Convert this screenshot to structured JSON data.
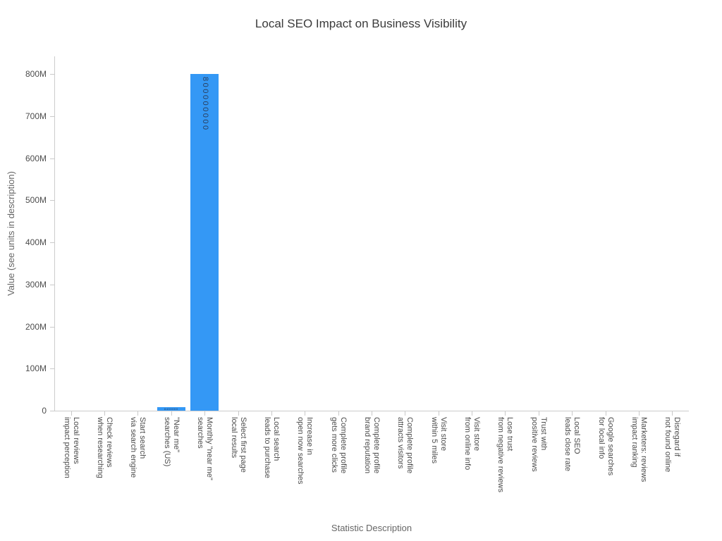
{
  "chart_data": {
    "type": "bar",
    "title": "Local SEO Impact on Business Visibility",
    "xlabel": "Statistic Description",
    "ylabel": "Value (see units in description)",
    "categories": [
      [
        "Local reviews",
        "impact perception"
      ],
      [
        "Check reviews",
        "when researching"
      ],
      [
        "Start search",
        "via search engine"
      ],
      [
        "\"Near me\"",
        "searches (US)"
      ],
      [
        "Monthly \"near me\"",
        "searches"
      ],
      [
        "Select first page",
        "local results"
      ],
      [
        "Local search",
        "leads to purchase"
      ],
      [
        "Increase in",
        "open now searches"
      ],
      [
        "Complete profile",
        "gets more clicks"
      ],
      [
        "Complete profile",
        "brand reputation"
      ],
      [
        "Complete profile",
        "attracts visitors"
      ],
      [
        "Visit store",
        "within 5 miles"
      ],
      [
        "Visit store",
        "from online info"
      ],
      [
        "Lose trust",
        "from negative reviews"
      ],
      [
        "Trust with",
        "positive reviews"
      ],
      [
        "Local SEO",
        "leads close rate"
      ],
      [
        "Google searches",
        "for local info"
      ],
      [
        "Marketers: reviews",
        "impact ranking"
      ],
      [
        "Disregard if",
        "not found online"
      ]
    ],
    "values": [
      0,
      0,
      0,
      8400000,
      800000000,
      0,
      0,
      0,
      0,
      0,
      0,
      0,
      0,
      0,
      0,
      0,
      0,
      0,
      0
    ],
    "bar_value_labels": [
      "",
      "",
      "",
      "8400000",
      "800000000",
      "",
      "",
      "",
      "",
      "",
      "",
      "",
      "",
      "",
      "",
      "",
      "",
      "",
      ""
    ],
    "yticks": [
      {
        "label": "0",
        "value": 0
      },
      {
        "label": "100M",
        "value": 100000000
      },
      {
        "label": "200M",
        "value": 200000000
      },
      {
        "label": "300M",
        "value": 300000000
      },
      {
        "label": "400M",
        "value": 400000000
      },
      {
        "label": "500M",
        "value": 500000000
      },
      {
        "label": "600M",
        "value": 600000000
      },
      {
        "label": "700M",
        "value": 700000000
      },
      {
        "label": "800M",
        "value": 800000000
      }
    ],
    "ylim": [
      0,
      842000000
    ],
    "grid": false,
    "legend": false,
    "bar_color": "#3498f5",
    "bar_label_color": "#2a3f5f",
    "axis_line_color": "#cccccc"
  }
}
